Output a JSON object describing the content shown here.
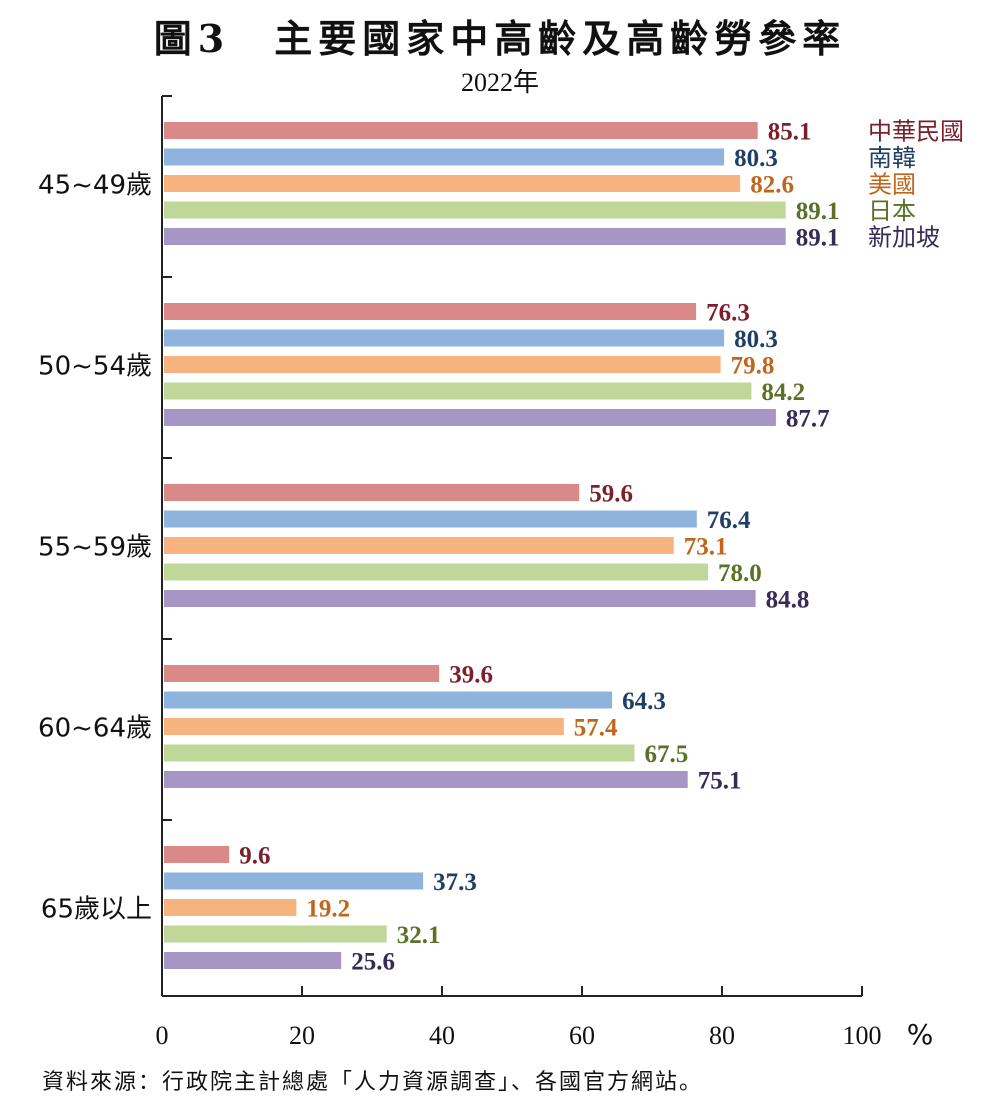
{
  "title": "圖3　主要國家中高齡及高齡勞參率",
  "subtitle": "2022年",
  "source": "資料來源：行政院主計總處「人力資源調查」、各國官方網站。",
  "chart_data": {
    "type": "bar",
    "orientation": "horizontal",
    "title": "圖3　主要國家中高齡及高齡勞參率",
    "subtitle": "2022年",
    "categories": [
      "45~49歲",
      "50~54歲",
      "55~59歲",
      "60~64歲",
      "65歲以上"
    ],
    "series": [
      {
        "name": "中華民國",
        "color": "#d98a88",
        "label_color": "#7a1f2b",
        "values": [
          85.1,
          76.3,
          59.6,
          39.6,
          9.6
        ]
      },
      {
        "name": "南韓",
        "color": "#8eb3dd",
        "label_color": "#1f3f66",
        "values": [
          80.3,
          80.3,
          76.4,
          64.3,
          37.3
        ]
      },
      {
        "name": "美國",
        "color": "#f6b27f",
        "label_color": "#c0661c",
        "values": [
          82.6,
          79.8,
          73.1,
          57.4,
          19.2
        ]
      },
      {
        "name": "日本",
        "color": "#bfd89a",
        "label_color": "#5a7128",
        "values": [
          89.1,
          84.2,
          78.0,
          67.5,
          32.1
        ]
      },
      {
        "name": "新加坡",
        "color": "#a596c6",
        "label_color": "#362b54",
        "values": [
          89.1,
          87.7,
          84.8,
          75.1,
          25.6
        ]
      }
    ],
    "value_labels": [
      [
        "85.1",
        "76.3",
        "59.6",
        "39.6",
        "9.6"
      ],
      [
        "80.3",
        "80.3",
        "76.4",
        "64.3",
        "37.3"
      ],
      [
        "82.6",
        "79.8",
        "73.1",
        "57.4",
        "19.2"
      ],
      [
        "89.1",
        "84.2",
        "78.0",
        "67.5",
        "32.1"
      ],
      [
        "89.1",
        "87.7",
        "84.8",
        "75.1",
        "25.6"
      ]
    ],
    "x_ticks": [
      "0",
      "20",
      "40",
      "60",
      "80",
      "100"
    ],
    "x_unit": "%",
    "xlim": [
      0,
      100
    ],
    "legend": "top-right, beside the first group",
    "grid": false
  }
}
